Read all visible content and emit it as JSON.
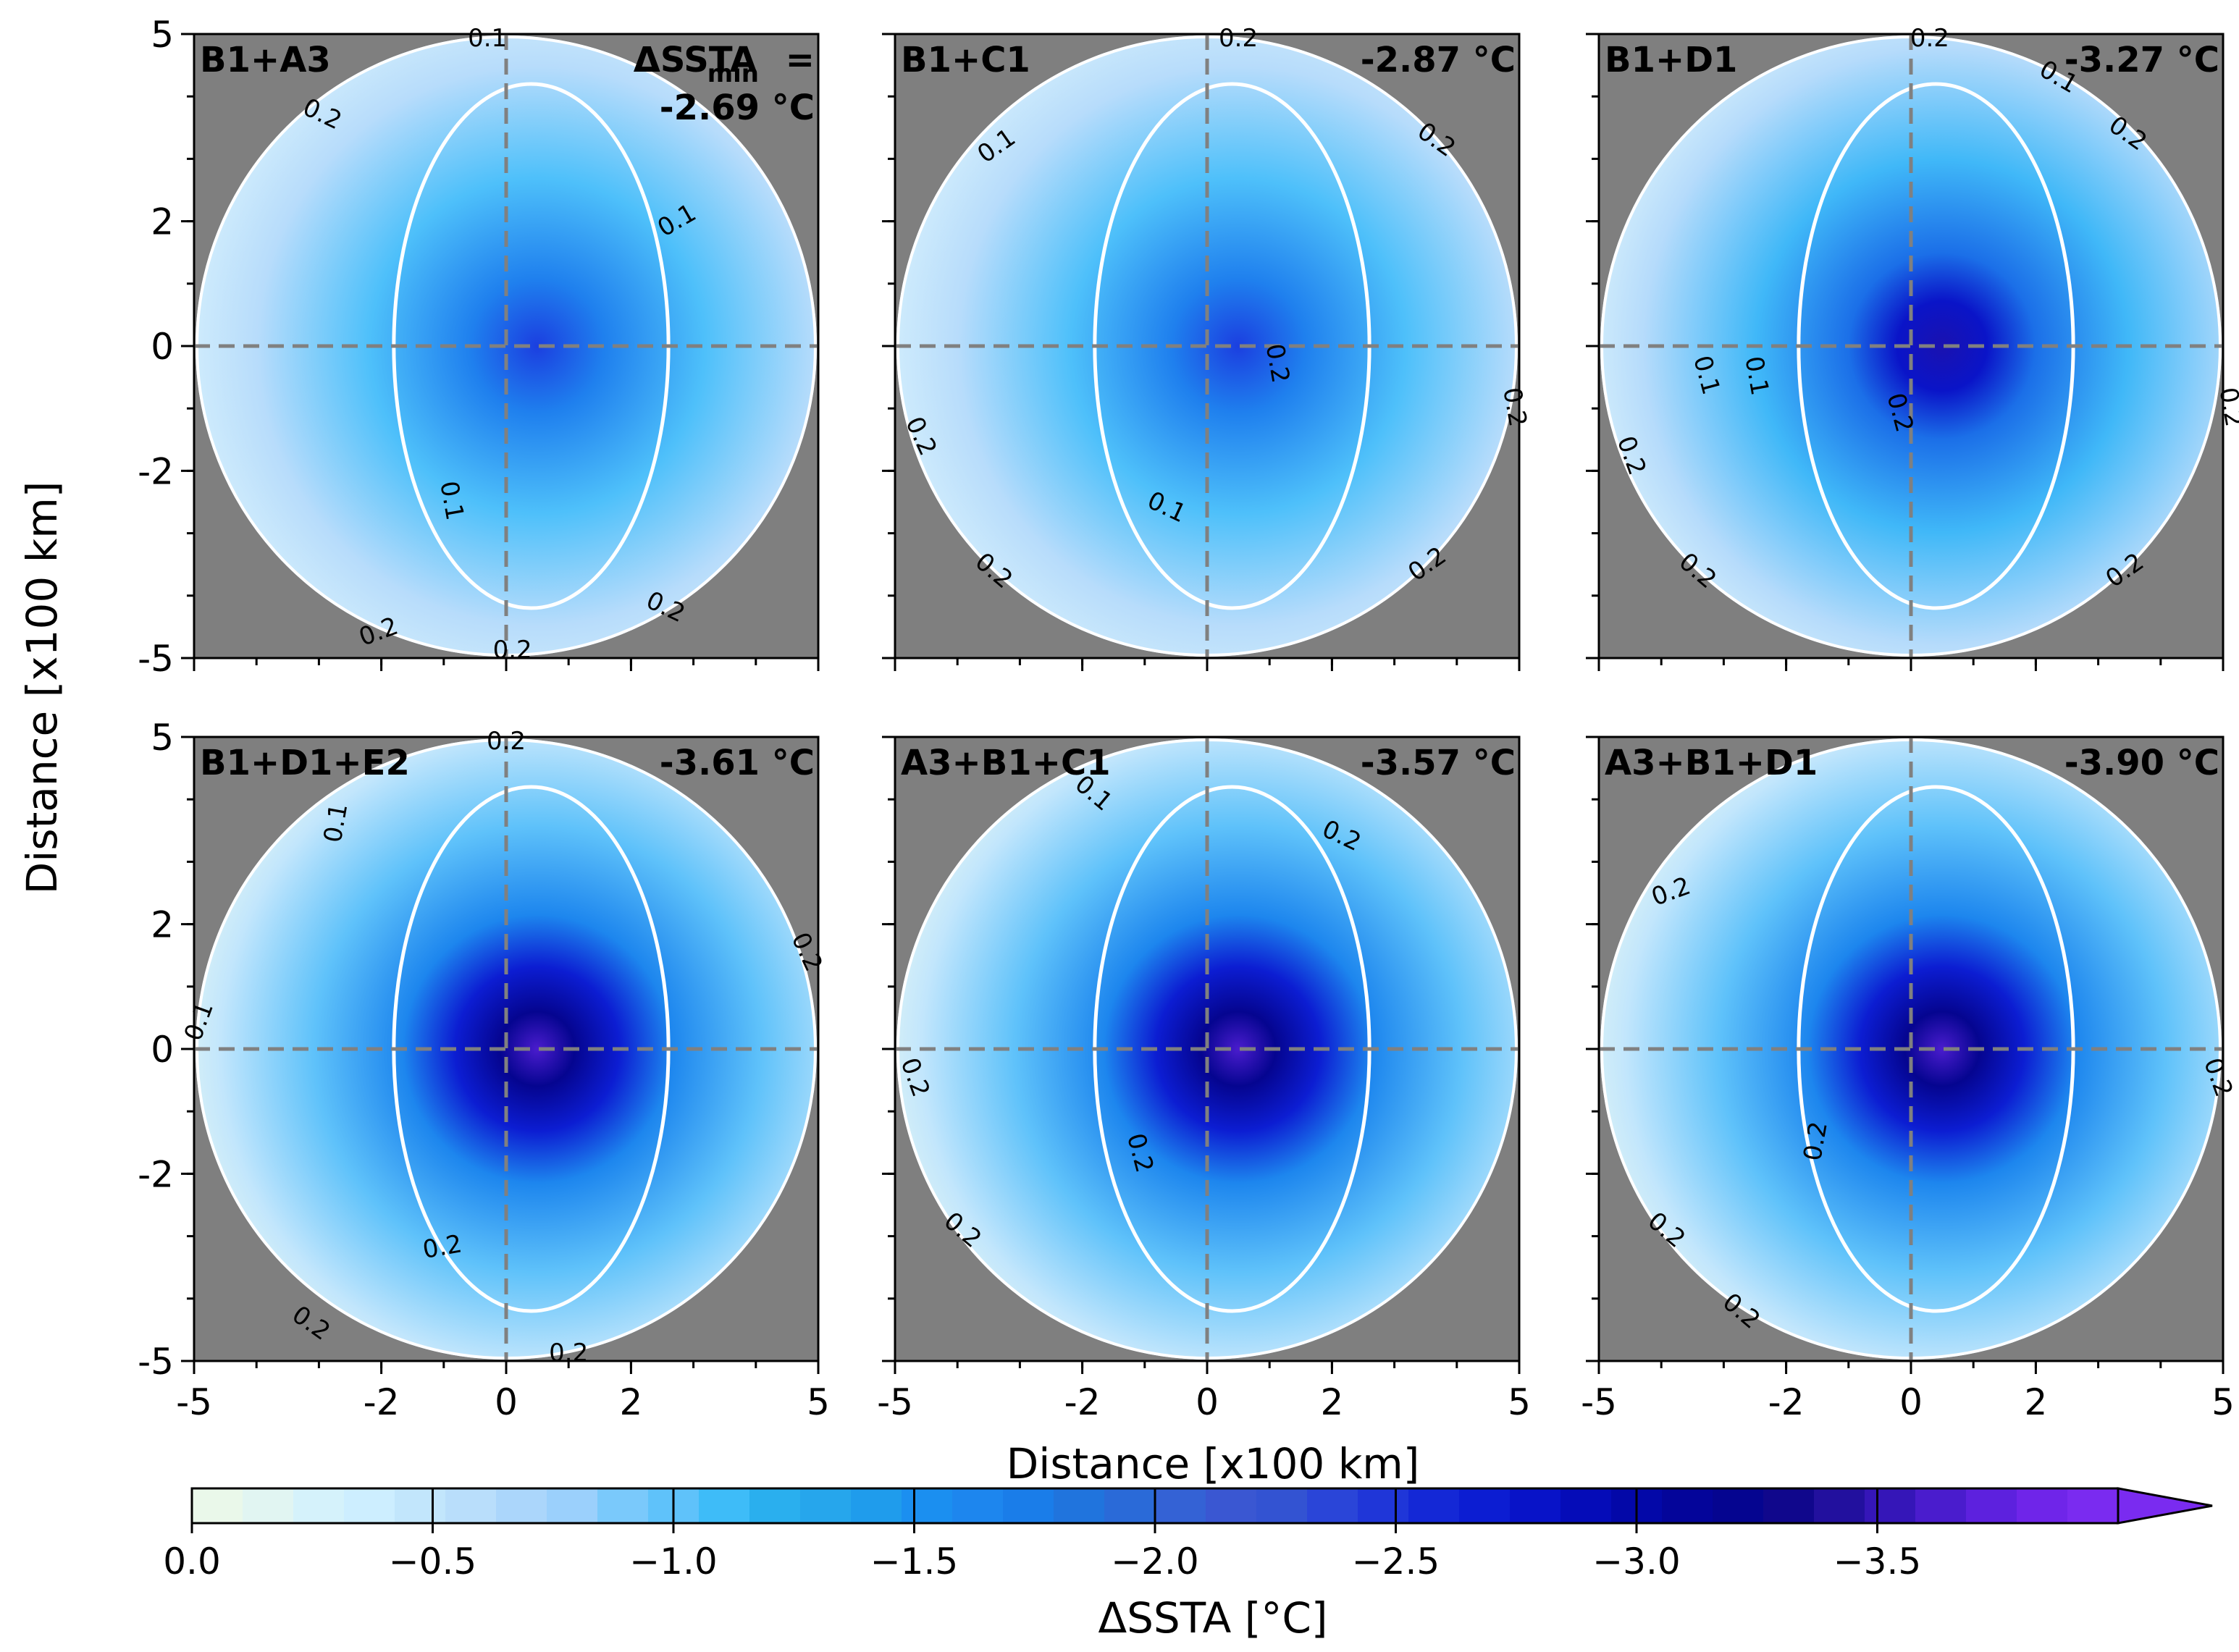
{
  "chart_data": {
    "type": "heatmap",
    "panels": [
      {
        "label": "B1+A3",
        "min_header": "ΔSSTA",
        "min_header_sub": "min",
        "min_header_eq": "=",
        "min_value": "-2.69 °C",
        "contour_labels": [
          "0.1",
          "0.2",
          "0.1",
          "0.1",
          "0.2",
          "0.2",
          "0.2"
        ]
      },
      {
        "label": "B1+C1",
        "min_value": "-2.87 °C",
        "contour_labels": [
          "0.2",
          "0.1",
          "0.2",
          "0.2",
          "0.2",
          "0.2",
          "0.1",
          "0.2",
          "0.2"
        ]
      },
      {
        "label": "B1+D1",
        "min_value": "-3.27 °C",
        "contour_labels": [
          "0.2",
          "0.1",
          "0.2",
          "0.1",
          "0.1",
          "0.2",
          "0.2",
          "0.2",
          "0.2",
          "0.2"
        ]
      },
      {
        "label": "B1+D1+E2",
        "min_value": "-3.61 °C",
        "contour_labels": [
          "0.2",
          "0.1",
          "0.1",
          "0.2",
          "0.2",
          "0.2",
          "0.2"
        ]
      },
      {
        "label": "A3+B1+C1",
        "min_value": "-3.57 °C",
        "contour_labels": [
          "0.1",
          "0.2",
          "0.2",
          "0.2",
          "0.2"
        ]
      },
      {
        "label": "A3+B1+D1",
        "min_value": "-3.90 °C",
        "contour_labels": [
          "0.2",
          "0.2",
          "0.2",
          "0.2",
          "0.2"
        ]
      }
    ],
    "xlabel": "Distance [x100 km]",
    "ylabel": "Distance [x100 km]",
    "xlim": [
      -5,
      5
    ],
    "ylim": [
      -5,
      5
    ],
    "x_tick_labels": [
      "-5",
      "-2",
      "0",
      "2",
      "5"
    ],
    "y_tick_labels": [
      "5",
      "2",
      "0",
      "-2",
      "-5"
    ],
    "colorbar": {
      "label": "ΔSSTA [°C]",
      "tick_labels": [
        "0.0",
        "−0.5",
        "−1.0",
        "−1.5",
        "−2.0",
        "−2.5",
        "−3.0",
        "−3.5"
      ],
      "range": [
        0.0,
        -4.0
      ],
      "extend": "min"
    }
  },
  "colors": {
    "background_mask": "#7f7f7f",
    "contour": "#ffffff",
    "zero_line": "#808080",
    "colorbar": [
      "#eaf8ea",
      "#e1f5f2",
      "#d5f2fb",
      "#cdeeff",
      "#c2e6fc",
      "#b9defb",
      "#abd6fb",
      "#9bd0fc",
      "#7ac9fb",
      "#5fc2fa",
      "#3ebcf8",
      "#2aafee",
      "#26a6ec",
      "#1f9cec",
      "#1b8ff0",
      "#1d86ee",
      "#1a7de9",
      "#2074dd",
      "#2a6ad8",
      "#3462d5",
      "#3a57d2",
      "#3353d2",
      "#2a45d8",
      "#1f36d8",
      "#1428d6",
      "#0c1dd2",
      "#0813c8",
      "#050cb8",
      "#0308a8",
      "#04059a",
      "#050590",
      "#10078c",
      "#22109e",
      "#3516b8",
      "#4a1ccd",
      "#5d21de",
      "#6f25e9",
      "#7a2bf0"
    ]
  }
}
